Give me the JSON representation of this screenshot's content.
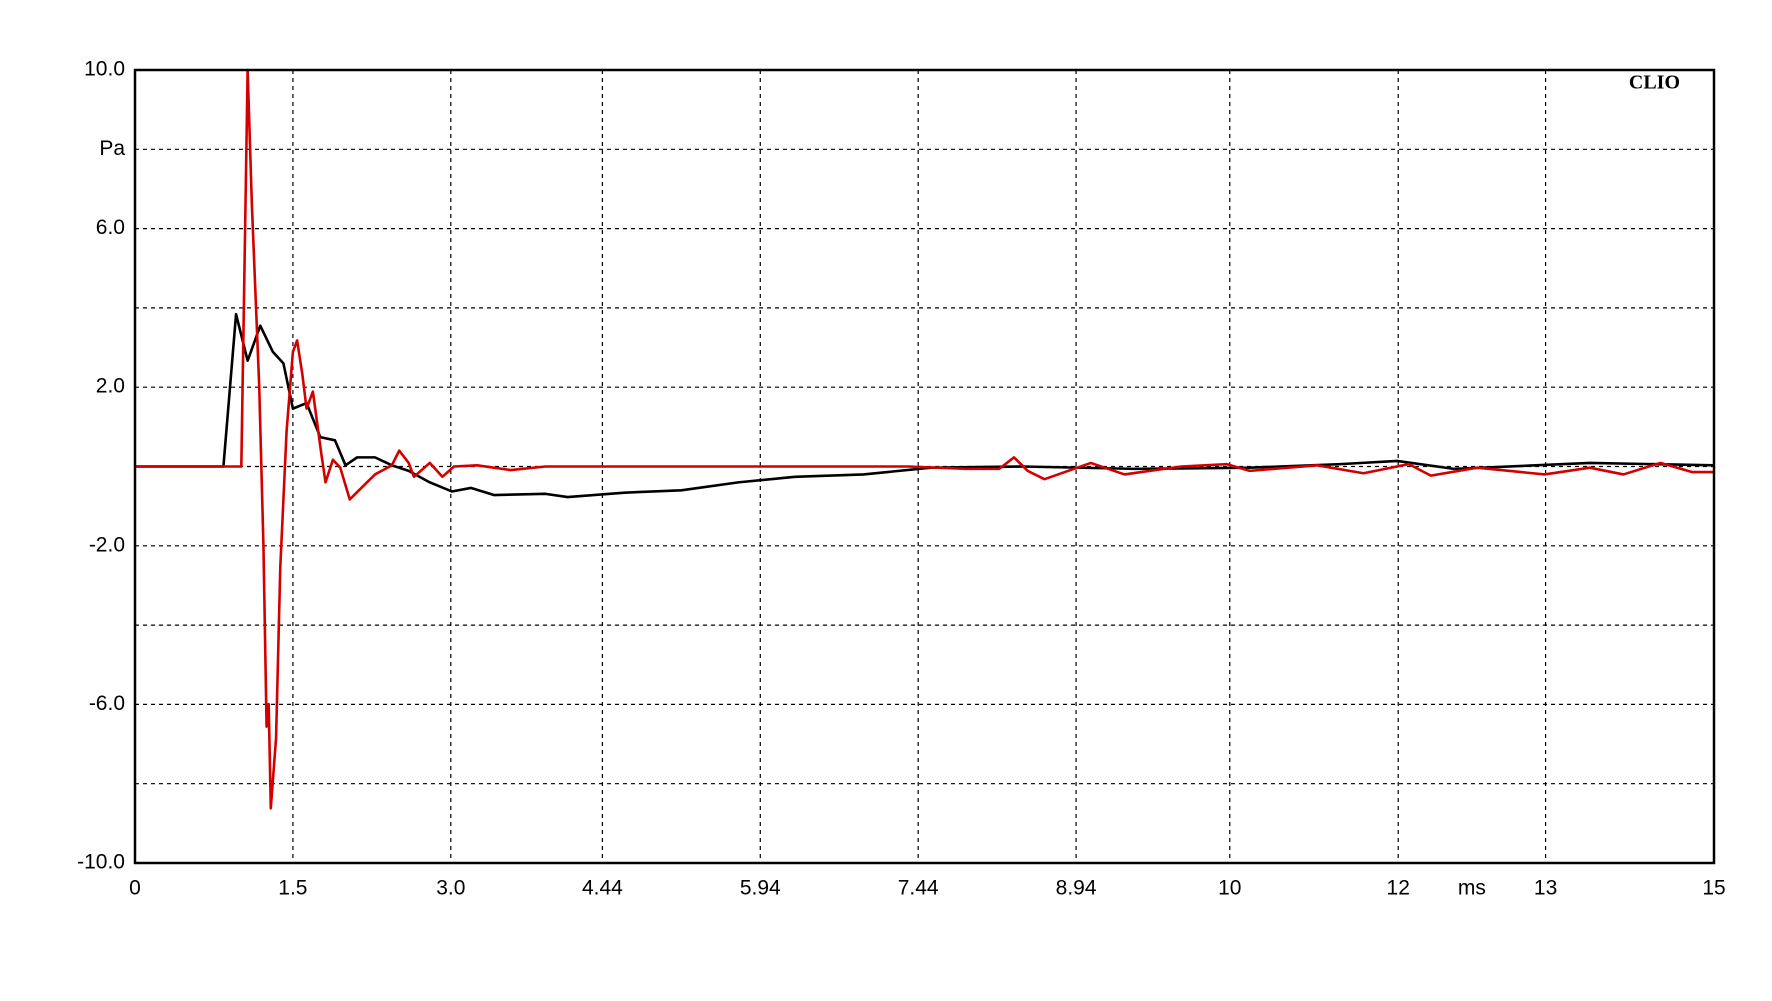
{
  "chart_data": {
    "type": "line",
    "annotation": "CLIO",
    "x_label": "ms",
    "xlim": [
      0,
      15
    ],
    "xticks": [
      0,
      1.5,
      {
        "value": 3,
        "label": "3.0"
      },
      4.44,
      5.94,
      7.44,
      8.94,
      {
        "value": 10.4,
        "label": "10"
      },
      12,
      {
        "value": 13.4,
        "label": "13"
      },
      15
    ],
    "ylim": [
      -10,
      10
    ],
    "yticks": [
      {
        "value": 10,
        "label": "10.0"
      },
      {
        "value": 8,
        "label": "Pa"
      },
      {
        "value": 6,
        "label": "6.0"
      },
      {
        "value": 2,
        "label": "2.0"
      },
      {
        "value": -2,
        "label": "-2.0"
      },
      {
        "value": -6,
        "label": "-6.0"
      },
      {
        "value": -10,
        "label": "-10.0"
      }
    ],
    "ygrid": [
      4,
      0,
      -4,
      -8
    ],
    "grid": true,
    "series": [
      {
        "color": "#000000",
        "x": [
          0,
          0.84,
          0.96,
          1.07,
          1.19,
          1.31,
          1.41,
          1.5,
          1.63,
          1.76,
          1.9,
          2.0,
          2.11,
          2.28,
          2.44,
          2.6,
          2.8,
          3.01,
          3.19,
          3.41,
          3.9,
          4.11,
          4.65,
          5.19,
          5.73,
          6.27,
          6.92,
          7.56,
          8.43,
          9.5,
          10.59,
          11.45,
          11.99,
          12.53,
          13.82,
          15
        ],
        "values": [
          0,
          0,
          3.84,
          2.67,
          3.55,
          2.89,
          2.6,
          1.46,
          1.6,
          0.74,
          0.66,
          0.03,
          0.23,
          0.23,
          0.03,
          -0.11,
          -0.4,
          -0.63,
          -0.54,
          -0.72,
          -0.69,
          -0.77,
          -0.66,
          -0.6,
          -0.4,
          -0.26,
          -0.2,
          -0.03,
          0,
          -0.06,
          -0.03,
          0.06,
          0.14,
          -0.06,
          0.09,
          0.03
        ]
      },
      {
        "color": "#d40000",
        "x": [
          0,
          1.01,
          1.07,
          1.11,
          1.18,
          1.22,
          1.25,
          1.27,
          1.29,
          1.34,
          1.38,
          1.44,
          1.5,
          1.54,
          1.59,
          1.63,
          1.69,
          1.77,
          1.81,
          1.88,
          1.95,
          2.04,
          2.15,
          2.28,
          2.44,
          2.51,
          2.6,
          2.65,
          2.8,
          2.92,
          3.03,
          3.25,
          3.57,
          3.9,
          5.19,
          7.35,
          7.89,
          8.21,
          8.35,
          8.48,
          8.64,
          9.08,
          9.4,
          9.94,
          10.37,
          10.59,
          11.23,
          11.67,
          12.1,
          12.31,
          12.75,
          13.39,
          13.82,
          14.14,
          14.49,
          14.79,
          15
        ],
        "values": [
          0,
          0,
          10,
          6.62,
          2.03,
          -1.98,
          -6.56,
          -5.99,
          -8.62,
          -6.85,
          -2.55,
          0.89,
          2.89,
          3.18,
          2.32,
          1.46,
          1.89,
          0.32,
          -0.4,
          0.17,
          -0.03,
          -0.83,
          -0.54,
          -0.2,
          0.03,
          0.4,
          0.09,
          -0.26,
          0.09,
          -0.26,
          0,
          0.03,
          -0.09,
          0,
          0,
          0,
          -0.06,
          -0.06,
          0.23,
          -0.11,
          -0.32,
          0.09,
          -0.2,
          0,
          0.06,
          -0.11,
          0.03,
          -0.17,
          0.06,
          -0.23,
          -0.03,
          -0.2,
          -0.03,
          -0.2,
          0.09,
          -0.14,
          -0.14
        ]
      }
    ]
  }
}
